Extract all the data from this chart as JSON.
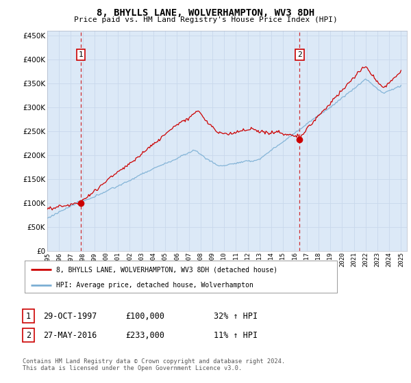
{
  "title": "8, BHYLLS LANE, WOLVERHAMPTON, WV3 8DH",
  "subtitle": "Price paid vs. HM Land Registry's House Price Index (HPI)",
  "background_color": "#dce9f7",
  "fig_bg_color": "#ffffff",
  "grid_color": "#c8d8ec",
  "sale1_date": 1997.83,
  "sale1_price": 100000,
  "sale1_label": "1",
  "sale2_date": 2016.4,
  "sale2_price": 233000,
  "sale2_label": "2",
  "xmin": 1995.0,
  "xmax": 2025.5,
  "ymin": 0,
  "ymax": 460000,
  "yticks": [
    0,
    50000,
    100000,
    150000,
    200000,
    250000,
    300000,
    350000,
    400000,
    450000
  ],
  "ytick_labels": [
    "£0",
    "£50K",
    "£100K",
    "£150K",
    "£200K",
    "£250K",
    "£300K",
    "£350K",
    "£400K",
    "£450K"
  ],
  "legend_label_red": "8, BHYLLS LANE, WOLVERHAMPTON, WV3 8DH (detached house)",
  "legend_label_blue": "HPI: Average price, detached house, Wolverhampton",
  "table_row1": [
    "1",
    "29-OCT-1997",
    "£100,000",
    "32% ↑ HPI"
  ],
  "table_row2": [
    "2",
    "27-MAY-2016",
    "£233,000",
    "11% ↑ HPI"
  ],
  "footer": "Contains HM Land Registry data © Crown copyright and database right 2024.\nThis data is licensed under the Open Government Licence v3.0.",
  "red_color": "#cc0000",
  "blue_color": "#7bafd4",
  "marker_red": "#cc0000"
}
